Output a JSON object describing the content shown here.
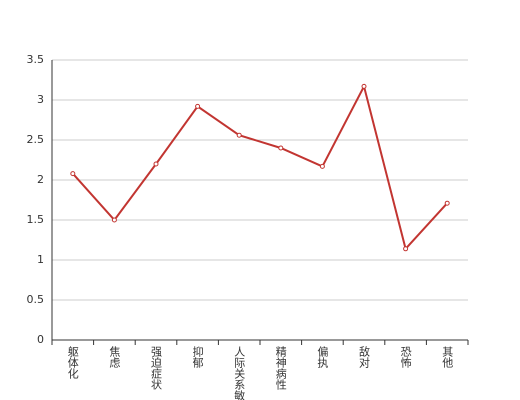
{
  "chart_data": {
    "type": "line",
    "categories": [
      "躯体化",
      "焦虑",
      "强迫症状",
      "抑郁",
      "人际关系敏感",
      "精神病性",
      "偏执",
      "敌对",
      "恐怖",
      "其他"
    ],
    "series": [
      {
        "color": "#c23531",
        "values": [
          2.08,
          1.5,
          2.2,
          2.92,
          2.56,
          2.4,
          2.17,
          3.17,
          1.14,
          1.71
        ]
      }
    ],
    "ylim": [
      0,
      3.5
    ],
    "yticks": [
      0,
      0.5,
      1,
      1.5,
      2,
      2.5,
      3,
      3.5
    ],
    "grid": true
  }
}
